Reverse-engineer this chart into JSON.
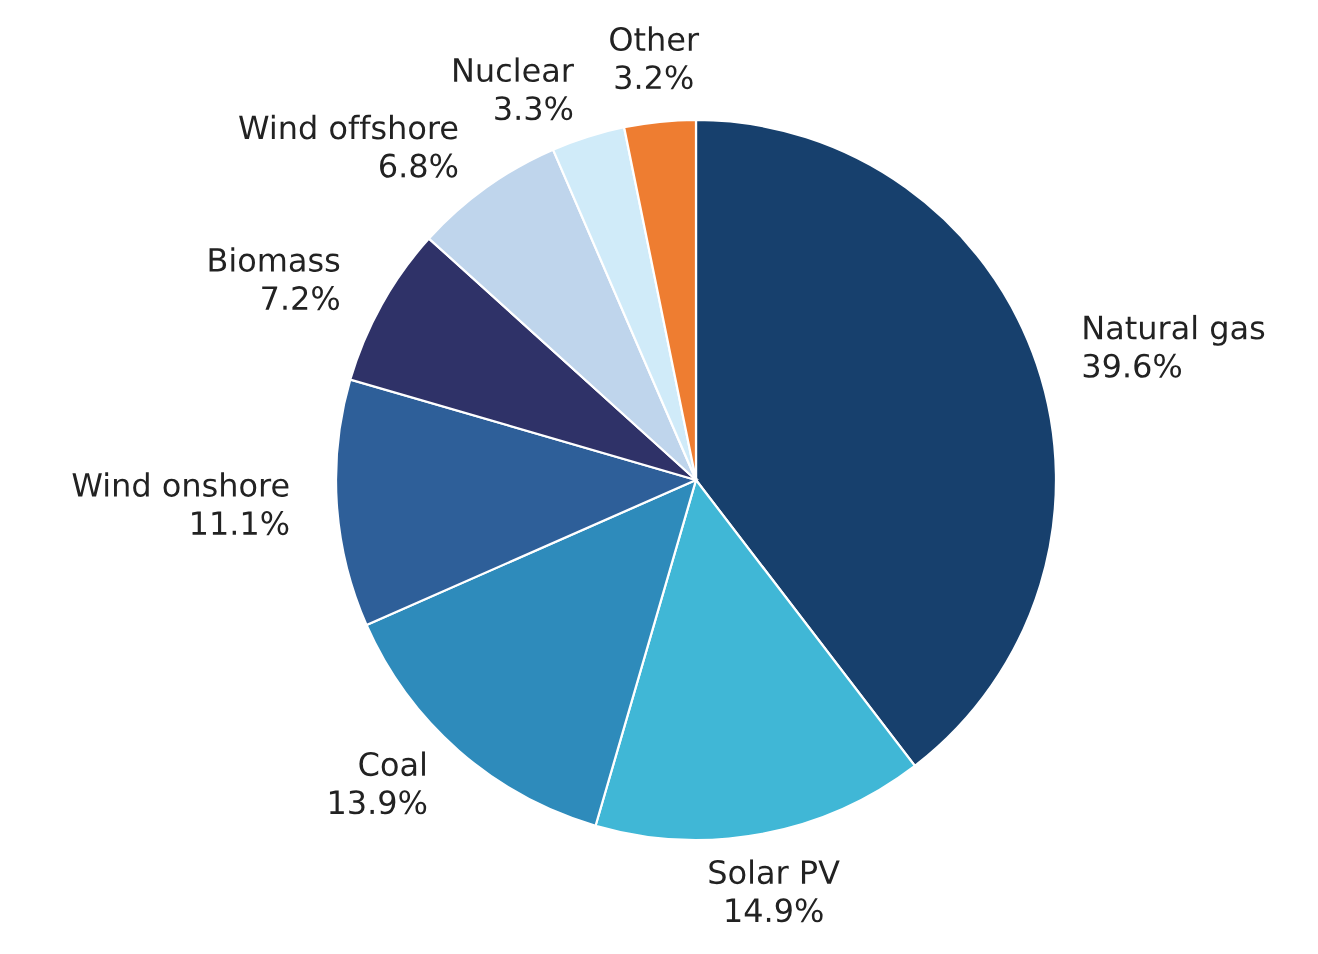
{
  "chart_data": {
    "type": "pie",
    "categories": [
      "Natural gas",
      "Solar PV",
      "Coal",
      "Wind onshore",
      "Biomass",
      "Wind offshore",
      "Nuclear",
      "Other"
    ],
    "values": [
      39.6,
      14.9,
      13.9,
      11.1,
      7.2,
      6.8,
      3.3,
      3.2
    ],
    "value_labels": [
      "39.6%",
      "14.9%",
      "13.9%",
      "11.1%",
      "7.2%",
      "6.8%",
      "3.3%",
      "3.2%"
    ],
    "colors": [
      "#17406d",
      "#40b7d6",
      "#2e8bbb",
      "#2e5f99",
      "#2f3268",
      "#bfd5ec",
      "#d0ebf9",
      "#ee7d31"
    ],
    "legend": false
  }
}
